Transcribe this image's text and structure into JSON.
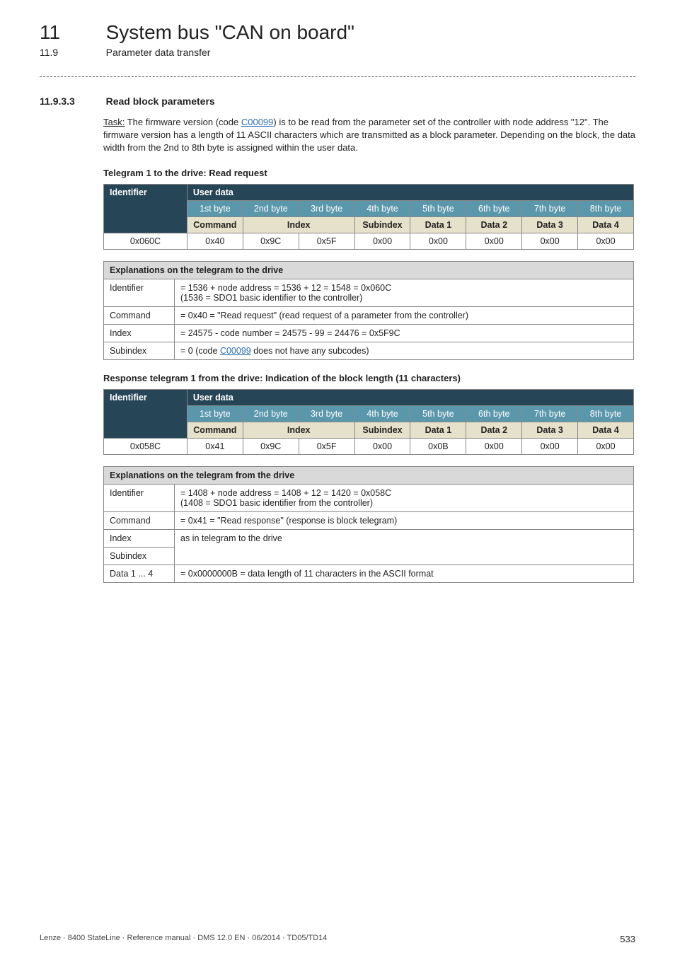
{
  "chapter": {
    "num": "11",
    "title": "System bus \"CAN on board\""
  },
  "section": {
    "num": "11.9",
    "title": "Parameter data transfer"
  },
  "h3": {
    "num": "11.9.3.3",
    "title": "Read block parameters"
  },
  "intro": {
    "task_word": "Task:",
    "before_link": " The firmware version (code ",
    "link": "C00099",
    "after_link": ") is to be read from the parameter set of the controller with node address \"12\". The firmware version has a length of 11 ASCII characters which are transmitted as a block parameter. Depending on the block, the data width from the 2nd to 8th byte is assigned within the user data."
  },
  "heading1": "Telegram 1 to the drive: Read request",
  "tele_headers": {
    "identifier": "Identifier",
    "userdata": "User data",
    "bytes": [
      "1st byte",
      "2nd byte",
      "3rd byte",
      "4th byte",
      "5th byte",
      "6th byte",
      "7th byte",
      "8th byte"
    ],
    "row3": [
      "Command",
      "Index",
      "Subindex",
      "Data 1",
      "Data 2",
      "Data 3",
      "Data 4"
    ]
  },
  "tele1_data": [
    "0x060C",
    "0x40",
    "0x9C",
    "0x5F",
    "0x00",
    "0x00",
    "0x00",
    "0x00",
    "0x00"
  ],
  "explain1_title": "Explanations on the telegram to the drive",
  "explain1": [
    {
      "label": "Identifier",
      "val_a": "= 1536 + node address = 1536 + 12 = 1548 = 0x060C",
      "val_b": "(1536 = SDO1 basic identifier to the controller)"
    },
    {
      "label": "Command",
      "val_a": "= 0x40 = \"Read request\" (read request of a parameter from the controller)"
    },
    {
      "label": "Index",
      "val_a": "= 24575 - code number = 24575 - 99 = 24476 = 0x5F9C"
    },
    {
      "label": "Subindex",
      "val_a_pre": "= 0 (code ",
      "val_a_link": "C00099",
      "val_a_post": "  does not have any subcodes)"
    }
  ],
  "heading2": "Response telegram 1 from the drive: Indication of the block length (11 characters)",
  "tele2_data": [
    "0x058C",
    "0x41",
    "0x9C",
    "0x5F",
    "0x00",
    "0x0B",
    "0x00",
    "0x00",
    "0x00"
  ],
  "explain2_title": "Explanations on the telegram from the drive",
  "explain2": [
    {
      "label": "Identifier",
      "val_a": "= 1408 + node address = 1408 + 12 = 1420 = 0x058C",
      "val_b": "(1408 = SDO1 basic identifier from the controller)"
    },
    {
      "label": "Command",
      "val_a": "= 0x41 = \"Read response\" (response is block telegram)"
    },
    {
      "label": "Index",
      "val_a": "as in telegram to the drive",
      "rowspan": 2
    },
    {
      "label": "Subindex"
    },
    {
      "label": "Data 1 ... 4",
      "val_a": "= 0x0000000B = data length of 11 characters in the ASCII format"
    }
  ],
  "footer": {
    "left": "Lenze · 8400 StateLine · Reference manual · DMS 12.0 EN · 06/2014 · TD05/TD14",
    "page": "533"
  }
}
